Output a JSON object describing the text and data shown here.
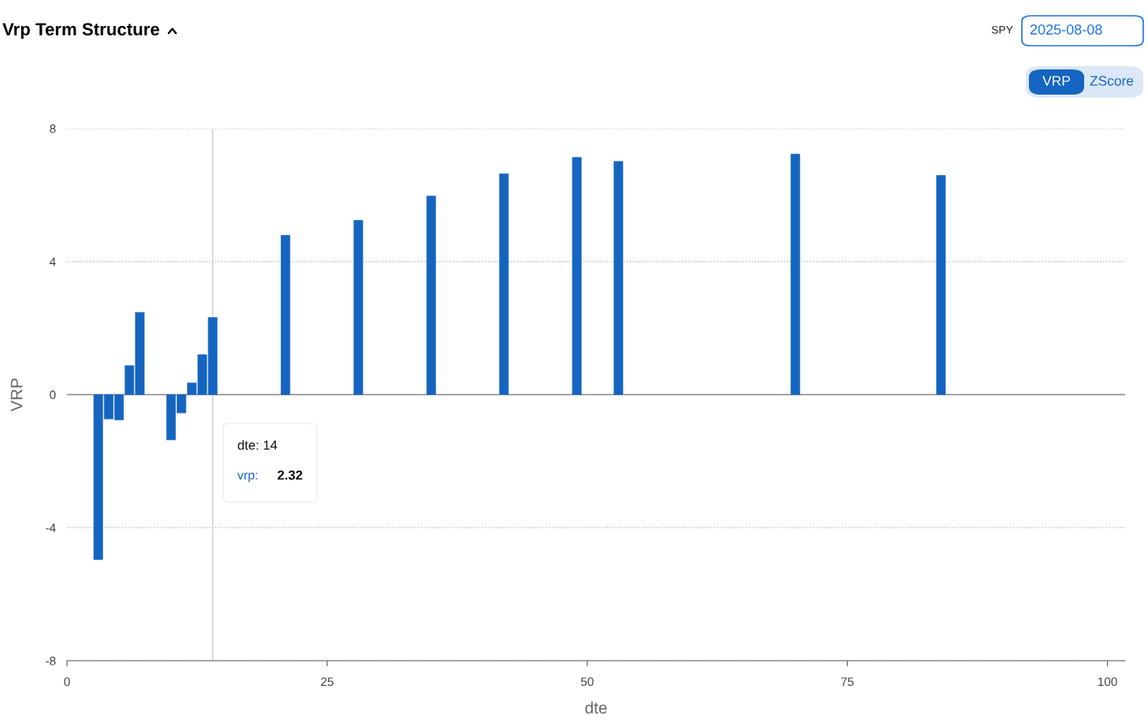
{
  "chart_data": {
    "type": "bar",
    "title": "Vrp Term Structure",
    "xlabel": "dte",
    "ylabel": "VRP",
    "x": [
      3,
      4,
      5,
      6,
      7,
      10,
      11,
      12,
      13,
      14,
      21,
      28,
      35,
      42,
      49,
      53,
      70,
      84
    ],
    "values": [
      -4.96,
      -0.73,
      -0.76,
      0.87,
      2.47,
      -1.36,
      -0.55,
      0.35,
      1.2,
      2.32,
      4.79,
      5.24,
      5.97,
      6.64,
      7.13,
      7.01,
      7.23,
      6.59
    ],
    "color": "#1565c0",
    "xlim": [
      0,
      101.7
    ],
    "xticks": [
      0,
      25,
      50,
      75,
      100
    ],
    "ylim": [
      -8,
      8
    ],
    "yticks": [
      -8,
      -4,
      0,
      4,
      8
    ],
    "grid": "y",
    "ref_lines": [
      {
        "axis": "y",
        "value": 0,
        "color": "#888888",
        "line_style": "solid"
      },
      {
        "axis": "x",
        "value": 14,
        "color": "#cccccc",
        "line_style": "solid"
      }
    ],
    "annotations": [
      "SPY",
      "2025-08-08",
      "VRP",
      "ZScore",
      "dte: 14",
      "vrp:",
      "2.32"
    ]
  }
}
